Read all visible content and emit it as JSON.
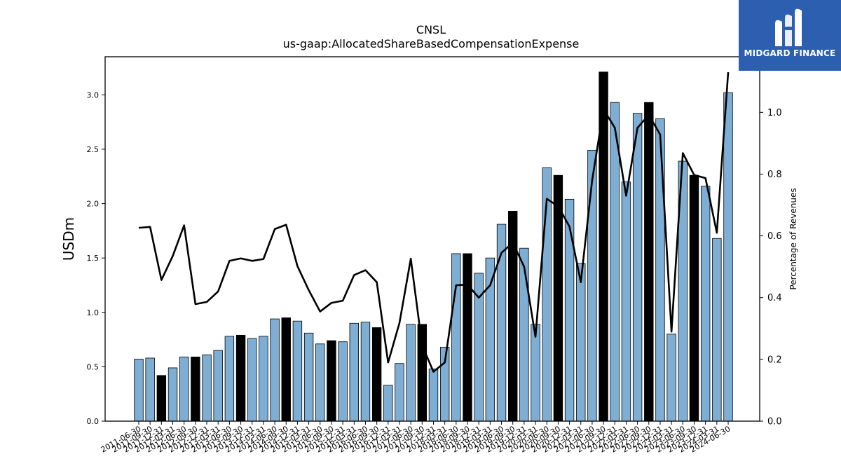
{
  "chart_data": {
    "type": "bar",
    "title": "CNSL",
    "subtitle": "us-gaap:AllocatedShareBasedCompensationExpense",
    "ylabel": "USDm",
    "y2label": "Percentage of Revenues",
    "ylim": [
      0,
      3.35
    ],
    "y2lim": [
      0,
      1.18
    ],
    "yticks": [
      "0.0",
      "0.5",
      "1.0",
      "1.5",
      "2.0",
      "2.5",
      "3.0"
    ],
    "y2ticks": [
      "0.0",
      "0.2",
      "0.4",
      "0.6",
      "0.8",
      "1.0"
    ],
    "categories": [
      "2011-06-30",
      "2011-09-30",
      "2011-12-31",
      "2012-03-31",
      "2012-06-30",
      "2012-09-30",
      "2012-12-31",
      "2013-03-31",
      "2013-06-30",
      "2013-09-30",
      "2013-12-31",
      "2014-03-31",
      "2014-06-30",
      "2014-09-30",
      "2014-12-31",
      "2015-03-31",
      "2015-06-30",
      "2015-09-30",
      "2015-12-31",
      "2016-03-31",
      "2016-06-30",
      "2016-09-30",
      "2016-12-31",
      "2017-03-31",
      "2017-06-30",
      "2017-09-30",
      "2017-12-31",
      "2018-03-31",
      "2018-06-30",
      "2018-09-30",
      "2018-12-31",
      "2019-03-31",
      "2019-06-30",
      "2019-09-30",
      "2019-12-31",
      "2020-03-31",
      "2020-06-30",
      "2020-09-30",
      "2020-12-31",
      "2021-03-31",
      "2021-06-30",
      "2021-09-30",
      "2021-12-31",
      "2022-03-31",
      "2022-06-30",
      "2022-09-30",
      "2022-12-31",
      "2023-03-31",
      "2023-06-30",
      "2023-09-30",
      "2023-12-31",
      "2024-03-31",
      "2024-06-30"
    ],
    "series": [
      {
        "type": "bar",
        "values": [
          0.57,
          0.58,
          0.42,
          0.49,
          0.59,
          0.59,
          0.61,
          0.65,
          0.78,
          0.79,
          0.76,
          0.78,
          0.94,
          0.95,
          0.92,
          0.81,
          0.71,
          0.74,
          0.73,
          0.9,
          0.91,
          0.86,
          0.33,
          0.53,
          0.89,
          0.89,
          0.48,
          0.68,
          1.54,
          1.54,
          1.36,
          1.5,
          1.81,
          1.93,
          1.59,
          0.89,
          2.33,
          2.26,
          2.04,
          1.45,
          2.49,
          3.21,
          2.93,
          2.2,
          2.83,
          2.93,
          2.78,
          0.8,
          2.39,
          2.26,
          2.16,
          1.68,
          3.02
        ],
        "highlight": [
          false,
          false,
          true,
          false,
          false,
          true,
          false,
          false,
          false,
          true,
          false,
          false,
          false,
          true,
          false,
          false,
          false,
          true,
          false,
          false,
          false,
          true,
          false,
          false,
          false,
          true,
          false,
          false,
          false,
          true,
          false,
          false,
          false,
          true,
          false,
          false,
          false,
          true,
          false,
          false,
          false,
          true,
          false,
          false,
          false,
          true,
          false,
          false,
          false,
          true,
          false,
          false,
          false
        ],
        "color": "#7eaed3",
        "highlight_color": "#000000"
      },
      {
        "type": "line",
        "axis": "right",
        "values": [
          0.626,
          0.629,
          0.457,
          0.535,
          0.634,
          0.379,
          0.386,
          0.42,
          0.519,
          0.527,
          0.519,
          0.525,
          0.622,
          0.636,
          0.502,
          0.424,
          0.355,
          0.383,
          0.39,
          0.473,
          0.489,
          0.45,
          0.19,
          0.318,
          0.526,
          0.245,
          0.16,
          0.19,
          0.44,
          0.442,
          0.4,
          0.44,
          0.545,
          0.578,
          0.5,
          0.273,
          0.72,
          0.696,
          0.63,
          0.45,
          0.78,
          1.01,
          0.95,
          0.73,
          0.95,
          0.992,
          0.928,
          0.29,
          0.868,
          0.797,
          0.787,
          0.61,
          1.13
        ],
        "color": "#000000"
      }
    ],
    "grid": false
  },
  "logo": {
    "text": "MIDGARD FINANCE",
    "icon": "midgard-logo-icon"
  }
}
